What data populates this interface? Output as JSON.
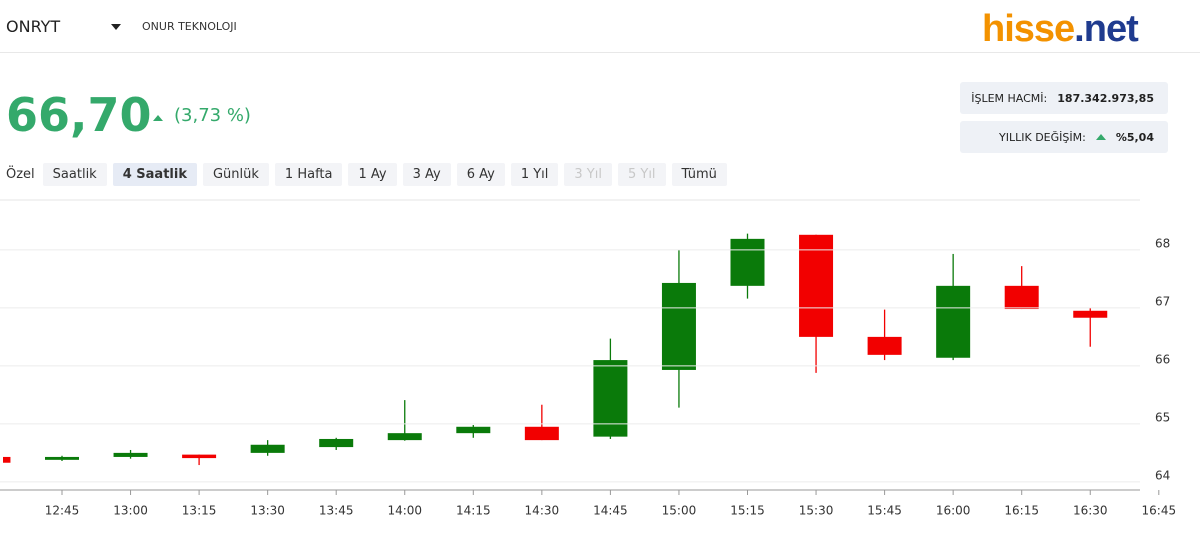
{
  "header": {
    "symbol": "ONRYT",
    "company": "ONUR TEKNOLOJI",
    "logo": [
      "hisse",
      ".net"
    ]
  },
  "quote": {
    "price": "66,70",
    "change": "(3,73 %)"
  },
  "stats": [
    {
      "label": "İŞLEM HACMİ:",
      "value": "187.342.973,85"
    },
    {
      "label": "YILLIK DEĞİŞİM:",
      "value": "%5,04"
    }
  ],
  "tabs": [
    "Özel",
    "Saatlik",
    "4 Saatlik",
    "Günlük",
    "1 Hafta",
    "1 Ay",
    "3 Ay",
    "6 Ay",
    "1 Yıl",
    "3 Yıl",
    "5 Yıl",
    "Tümü"
  ],
  "active_tab": 2,
  "disabled_tabs": [
    9,
    10
  ],
  "chart_data": {
    "type": "candlestick",
    "categories": [
      null,
      "12:45",
      "13:00",
      "13:15",
      "13:30",
      "13:45",
      "14:00",
      "14:15",
      "14:30",
      "14:45",
      "15:00",
      "15:15",
      "15:30",
      "15:45",
      "16:00",
      "16:15",
      "16:30",
      "16:45"
    ],
    "open": [
      64.43,
      64.38,
      64.43,
      64.47,
      64.5,
      64.6,
      64.72,
      64.84,
      64.95,
      64.78,
      65.93,
      67.38,
      68.26,
      66.5,
      66.14,
      67.38,
      66.95,
      null
    ],
    "high": [
      64.43,
      64.45,
      64.55,
      64.47,
      64.72,
      64.76,
      65.41,
      64.98,
      65.33,
      66.47,
      68.0,
      68.28,
      68.26,
      66.97,
      67.93,
      67.72,
      67.0,
      null
    ],
    "low": [
      64.33,
      64.36,
      64.4,
      64.29,
      64.45,
      64.55,
      64.71,
      64.76,
      64.72,
      64.74,
      65.28,
      67.16,
      65.88,
      66.1,
      66.1,
      66.98,
      66.33,
      null
    ],
    "close": [
      64.33,
      64.43,
      64.5,
      64.41,
      64.64,
      64.74,
      64.84,
      64.95,
      64.72,
      66.1,
      67.43,
      68.19,
      66.5,
      66.19,
      67.38,
      66.98,
      66.83,
      null
    ],
    "up_color": "#0a7a0a",
    "down_color": "#f20000",
    "ylim": [
      63.86,
      68.86
    ],
    "yticks": [
      64,
      65,
      66,
      67,
      68
    ],
    "grid": true
  }
}
